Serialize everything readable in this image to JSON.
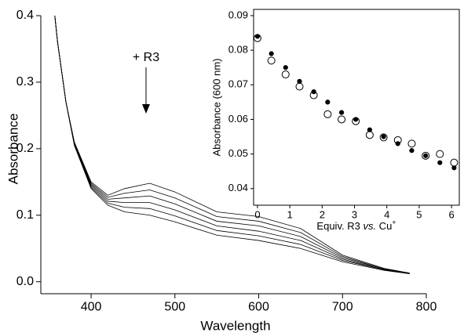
{
  "chart_data": [
    {
      "type": "line",
      "x_label": "Wavelength",
      "y_label": "Absorbance",
      "annotation": "+ R3",
      "x": [
        355,
        360,
        370,
        380,
        400,
        420,
        440,
        470,
        500,
        550,
        600,
        650,
        700,
        750,
        780
      ],
      "series": [
        {
          "color": "#000000",
          "values": [
            0.42,
            0.36,
            0.27,
            0.21,
            0.15,
            0.13,
            0.14,
            0.148,
            0.135,
            0.105,
            0.098,
            0.08,
            0.04,
            0.02,
            0.013
          ]
        },
        {
          "color": "#000000",
          "values": [
            0.42,
            0.36,
            0.27,
            0.209,
            0.148,
            0.127,
            0.133,
            0.138,
            0.126,
            0.098,
            0.091,
            0.074,
            0.038,
            0.019,
            0.013
          ]
        },
        {
          "color": "#000000",
          "values": [
            0.42,
            0.36,
            0.27,
            0.208,
            0.146,
            0.124,
            0.126,
            0.129,
            0.117,
            0.091,
            0.084,
            0.068,
            0.036,
            0.019,
            0.013
          ]
        },
        {
          "color": "#000000",
          "values": [
            0.42,
            0.36,
            0.27,
            0.207,
            0.144,
            0.121,
            0.119,
            0.119,
            0.108,
            0.084,
            0.076,
            0.062,
            0.034,
            0.018,
            0.012
          ]
        },
        {
          "color": "#000000",
          "values": [
            0.42,
            0.36,
            0.27,
            0.206,
            0.142,
            0.118,
            0.112,
            0.11,
            0.099,
            0.077,
            0.069,
            0.056,
            0.032,
            0.018,
            0.012
          ]
        },
        {
          "color": "#000000",
          "values": [
            0.42,
            0.36,
            0.27,
            0.205,
            0.14,
            0.115,
            0.105,
            0.1,
            0.09,
            0.07,
            0.062,
            0.05,
            0.03,
            0.017,
            0.012
          ]
        }
      ],
      "xlim": [
        340,
        800
      ],
      "xticks": [
        400,
        500,
        600,
        700,
        800
      ],
      "ylim": [
        -0.018,
        0.4
      ],
      "yticks": [
        {
          "value": 0,
          "label": "0.0"
        },
        0.1,
        0.2,
        0.3,
        0.4
      ]
    },
    {
      "type": "scatter",
      "y_label": "Absorbance (600 nm)",
      "x_label_parts": [
        "Equiv. R3 ",
        "vs.",
        " Cu",
        "+"
      ],
      "x": [
        0,
        0.43,
        0.87,
        1.3,
        1.74,
        2.17,
        2.6,
        3.04,
        3.47,
        3.9,
        4.34,
        4.77,
        5.2,
        5.64,
        6.08
      ],
      "series": [
        {
          "color": "#000000",
          "marker": "filled",
          "values": [
            0.084,
            0.079,
            0.075,
            0.071,
            0.068,
            0.065,
            0.062,
            0.06,
            0.057,
            0.055,
            0.053,
            0.051,
            0.0495,
            0.0475,
            0.046
          ]
        },
        {
          "color": "#000000",
          "marker": "open",
          "values": [
            0.0835,
            0.077,
            0.073,
            0.0695,
            0.067,
            0.0615,
            0.06,
            0.0595,
            0.0555,
            0.0548,
            0.054,
            0.053,
            0.0495,
            0.05,
            0.0475
          ]
        }
      ],
      "xlim": [
        -0.12,
        6.24
      ],
      "xticks": [
        0,
        1,
        2,
        3,
        4,
        5,
        6
      ],
      "ylim": [
        0.0352,
        0.0918
      ],
      "yticks": [
        0.04,
        0.05,
        0.06,
        0.07,
        0.08,
        0.09
      ]
    }
  ]
}
